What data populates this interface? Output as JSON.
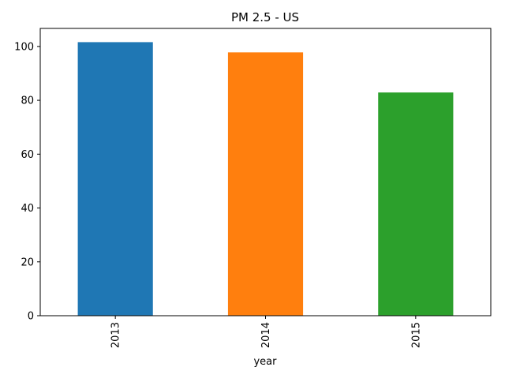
{
  "chart_data": {
    "type": "bar",
    "title": "PM 2.5 - US",
    "xlabel": "year",
    "ylabel": "",
    "categories": [
      "2013",
      "2014",
      "2015"
    ],
    "values": [
      101.6,
      97.8,
      82.9
    ],
    "colors": [
      "#1f77b4",
      "#ff7f0e",
      "#2ca02c"
    ],
    "ylim": [
      0,
      106.7
    ],
    "yticks": [
      0,
      20,
      40,
      60,
      80,
      100
    ],
    "ytick_labels": [
      "0",
      "20",
      "40",
      "60",
      "80",
      "100"
    ],
    "grid": false,
    "legend": "none",
    "xtick_rotation": "vertical"
  }
}
